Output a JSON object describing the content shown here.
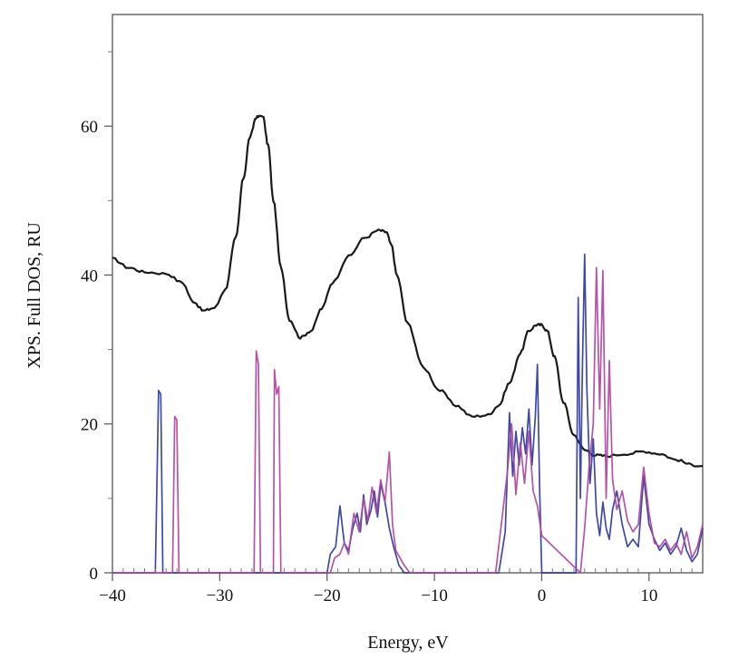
{
  "chart_data": {
    "type": "line",
    "title": "",
    "xlabel": "Energy, eV",
    "ylabel": "XPS. Full DOS, RU",
    "xlim": [
      -40,
      15
    ],
    "ylim": [
      0,
      75
    ],
    "xticks": [
      -40,
      -30,
      -20,
      -10,
      0,
      10
    ],
    "yticks": [
      0,
      20,
      40,
      60
    ],
    "grid": false,
    "legend": "none",
    "colors": {
      "xps": "#1a1a1a",
      "dos_blue": "#2e3a9e",
      "dos_magenta": "#b0449f"
    },
    "series": [
      {
        "style": "smooth",
        "color": "#1a1a1a",
        "x": [
          -40,
          -38.5,
          -37,
          -35,
          -33.5,
          -32.5,
          -31.5,
          -30.5,
          -29.5,
          -28.5,
          -27.8,
          -27.2,
          -26.6,
          -26.0,
          -25.5,
          -25.0,
          -24.3,
          -23.5,
          -22.5,
          -21.5,
          -20.5,
          -19.5,
          -18.0,
          -16.5,
          -15.2,
          -14.5,
          -14.0,
          -13.5,
          -12.5,
          -11.0,
          -9.5,
          -8.0,
          -6.5,
          -5.0,
          -4.0,
          -3.0,
          -2.0,
          -1.2,
          -0.5,
          0.0,
          0.5,
          1.2,
          2.0,
          3.0,
          4.0,
          5.0,
          6.0,
          8.0,
          9.5,
          11.0,
          12.5,
          14.0,
          15.0
        ],
        "y": [
          42.2,
          41.0,
          40.4,
          40.2,
          39.0,
          36.5,
          35.2,
          35.6,
          38.0,
          45.0,
          53.0,
          58.5,
          61.2,
          61.4,
          57.5,
          50.0,
          41.0,
          34.0,
          31.6,
          32.5,
          35.5,
          39.0,
          42.5,
          45.0,
          46.0,
          45.8,
          44.0,
          40.0,
          33.5,
          27.5,
          24.5,
          22.5,
          21.0,
          21.2,
          22.5,
          25.5,
          29.5,
          32.5,
          33.3,
          33.3,
          32.5,
          29.0,
          23.0,
          18.5,
          16.5,
          15.8,
          15.7,
          16.0,
          16.3,
          16.0,
          15.2,
          14.5,
          14.3
        ]
      },
      {
        "style": "jagged",
        "color": "#2e3a9e",
        "x": [
          -40,
          -36.0,
          -35.7,
          -35.5,
          -35.3,
          -20.0,
          -19.7,
          -19.2,
          -18.8,
          -18.4,
          -18.0,
          -17.6,
          -17.2,
          -16.9,
          -16.6,
          -16.3,
          -15.9,
          -15.6,
          -15.3,
          -15.0,
          -14.6,
          -14.2,
          -13.8,
          -13.3,
          -12.8,
          -4.0,
          -3.4,
          -3.0,
          -2.7,
          -2.4,
          -2.1,
          -1.8,
          -1.5,
          -1.2,
          -0.9,
          -0.6,
          -0.4,
          -0.2,
          0.0,
          3.2,
          3.4,
          3.6,
          3.8,
          4.0,
          4.2,
          4.5,
          4.8,
          5.1,
          5.4,
          5.7,
          6.0,
          6.3,
          6.6,
          7.0,
          7.5,
          8.0,
          8.5,
          9.0,
          9.5,
          10.0,
          10.5,
          11.0,
          11.5,
          12.0,
          12.5,
          13.0,
          13.5,
          14.0,
          14.5,
          15.0
        ],
        "y": [
          0,
          0,
          24.5,
          24.0,
          0,
          0,
          2.5,
          3.5,
          9.0,
          4.0,
          3.0,
          6.0,
          8.0,
          5.5,
          10.5,
          6.5,
          8.5,
          11.0,
          7.5,
          12.0,
          9.5,
          6.0,
          3.5,
          1.0,
          0,
          0,
          5.5,
          21.5,
          13.0,
          19.0,
          14.5,
          19.5,
          16.0,
          22.0,
          14.5,
          21.0,
          28.0,
          11.5,
          0,
          0,
          37.0,
          10.0,
          28.0,
          42.8,
          25.0,
          12.0,
          18.0,
          8.0,
          5.0,
          9.5,
          6.0,
          4.5,
          8.5,
          11.0,
          6.5,
          3.5,
          4.5,
          3.5,
          13.0,
          6.5,
          4.5,
          3.0,
          4.0,
          2.5,
          3.5,
          6.0,
          3.0,
          1.5,
          2.5,
          6.0
        ]
      },
      {
        "style": "jagged",
        "color": "#b0449f",
        "x": [
          -40,
          -34.4,
          -34.2,
          -34.0,
          -33.8,
          -26.8,
          -26.6,
          -26.4,
          -26.2,
          -25.0,
          -24.9,
          -24.7,
          -24.5,
          -24.3,
          -19.7,
          -19.3,
          -18.8,
          -18.4,
          -18.0,
          -17.5,
          -17.0,
          -16.6,
          -16.2,
          -15.8,
          -15.4,
          -15.0,
          -14.6,
          -14.2,
          -13.9,
          -13.6,
          -13.2,
          -12.8,
          -12.3,
          -4.3,
          -3.6,
          -3.2,
          -2.8,
          -2.4,
          -2.0,
          -1.6,
          -1.2,
          -0.8,
          -0.4,
          0.0,
          3.6,
          4.0,
          4.4,
          4.8,
          5.1,
          5.4,
          5.7,
          6.0,
          6.3,
          6.6,
          7.0,
          7.5,
          8.0,
          8.5,
          9.0,
          9.5,
          10.0,
          10.5,
          11.0,
          11.5,
          12.0,
          12.5,
          13.0,
          13.5,
          14.0,
          14.5,
          15.0
        ],
        "y": [
          0,
          0,
          21.0,
          20.5,
          0,
          0,
          29.8,
          28.0,
          0,
          0,
          27.3,
          24.0,
          25.0,
          0,
          0,
          2.0,
          2.5,
          4.0,
          2.5,
          8.0,
          5.5,
          10.0,
          7.0,
          11.5,
          8.0,
          12.5,
          9.5,
          16.2,
          6.5,
          3.0,
          2.0,
          1.0,
          0,
          0,
          8.5,
          13.5,
          20.0,
          10.5,
          17.5,
          12.0,
          19.0,
          11.0,
          9.0,
          5.0,
          0,
          6.0,
          14.0,
          20.0,
          41.0,
          22.0,
          40.6,
          10.0,
          28.5,
          12.5,
          8.5,
          11.0,
          7.0,
          5.5,
          6.5,
          14.2,
          8.0,
          4.0,
          3.5,
          4.5,
          3.0,
          4.0,
          2.5,
          5.5,
          2.0,
          3.5,
          6.5
        ]
      }
    ]
  }
}
